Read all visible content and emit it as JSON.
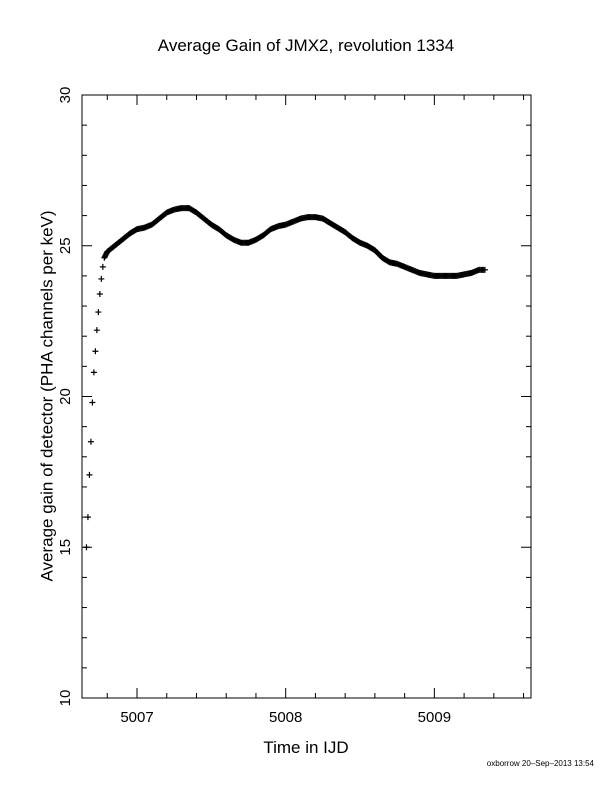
{
  "chart_data": {
    "type": "scatter",
    "title": "Average Gain of JMX2, revolution 1334",
    "xlabel": "Time in IJD",
    "ylabel": "Average gain of detector (PHA channels per keV)",
    "xlim": [
      5006.63,
      5009.65
    ],
    "ylim": [
      10,
      30
    ],
    "xticks": [
      5007,
      5008,
      5009
    ],
    "yticks": [
      10,
      15,
      20,
      25,
      30
    ],
    "marker": "+",
    "grid": false,
    "series": [
      {
        "color": "#000000",
        "x": [
          5006.66,
          5006.67,
          5006.68,
          5006.69,
          5006.7,
          5006.71,
          5006.72,
          5006.73,
          5006.74,
          5006.75,
          5006.76,
          5006.77,
          5006.78,
          5006.8,
          5006.85,
          5006.9,
          5006.95,
          5007.0,
          5007.05,
          5007.1,
          5007.15,
          5007.2,
          5007.25,
          5007.3,
          5007.35,
          5007.4,
          5007.45,
          5007.5,
          5007.55,
          5007.6,
          5007.65,
          5007.7,
          5007.75,
          5007.8,
          5007.85,
          5007.9,
          5007.95,
          5008.0,
          5008.05,
          5008.1,
          5008.15,
          5008.2,
          5008.25,
          5008.3,
          5008.35,
          5008.4,
          5008.45,
          5008.5,
          5008.55,
          5008.6,
          5008.65,
          5008.7,
          5008.75,
          5008.8,
          5008.85,
          5008.9,
          5008.95,
          5009.0,
          5009.05,
          5009.1,
          5009.15,
          5009.2,
          5009.25,
          5009.3,
          5009.34
        ],
        "y": [
          15.0,
          16.0,
          17.4,
          18.5,
          19.8,
          20.8,
          21.5,
          22.2,
          22.8,
          23.4,
          23.9,
          24.3,
          24.6,
          24.8,
          25.0,
          25.2,
          25.4,
          25.55,
          25.6,
          25.7,
          25.9,
          26.1,
          26.2,
          26.25,
          26.25,
          26.1,
          25.9,
          25.7,
          25.55,
          25.35,
          25.2,
          25.1,
          25.1,
          25.2,
          25.35,
          25.55,
          25.65,
          25.7,
          25.8,
          25.9,
          25.95,
          25.95,
          25.9,
          25.75,
          25.6,
          25.45,
          25.25,
          25.1,
          25.0,
          24.85,
          24.6,
          24.45,
          24.4,
          24.3,
          24.2,
          24.1,
          24.05,
          24.0,
          24.0,
          24.0,
          24.0,
          24.05,
          24.1,
          24.2,
          24.2
        ]
      }
    ]
  },
  "footer": "oxborrow 20–Sep–2013 13:54"
}
